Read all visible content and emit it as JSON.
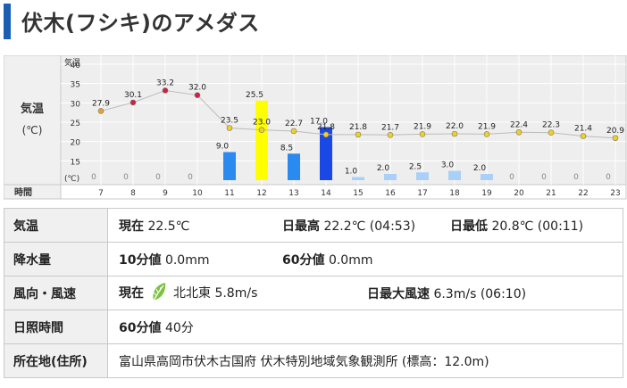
{
  "page": {
    "title": "伏木(フシキ)のアメダス"
  },
  "chart_data": {
    "type": "bar+line",
    "row_labels": {
      "temp": "気温",
      "temp_unit": "(℃)",
      "time": "時間"
    },
    "axis": {
      "corner_label": "気温",
      "unit_label": "(℃)",
      "yticks": [
        15,
        20,
        25,
        30,
        35,
        40
      ],
      "ylim": [
        10,
        40
      ]
    },
    "hours": [
      "7",
      "8",
      "9",
      "10",
      "11",
      "12",
      "13",
      "14",
      "15",
      "16",
      "17",
      "18",
      "19",
      "20",
      "21",
      "22",
      "23"
    ],
    "temperature": {
      "values": [
        27.9,
        30.1,
        33.2,
        32.0,
        23.5,
        23.0,
        22.7,
        21.8,
        21.8,
        21.7,
        21.9,
        22.0,
        21.9,
        22.4,
        22.3,
        21.4,
        20.9
      ],
      "labels": [
        "27.9",
        "30.1",
        "33.2",
        "32.0",
        "23.5",
        "23.0",
        "22.7",
        "21.8",
        "21.8",
        "21.7",
        "21.9",
        "22.0",
        "21.9",
        "22.4",
        "22.3",
        "21.4",
        "20.9"
      ]
    },
    "precipitation": {
      "values": [
        0,
        0,
        0,
        0,
        9.0,
        25.5,
        8.5,
        17.0,
        1.0,
        2.0,
        2.5,
        3.0,
        2.0,
        0,
        0,
        0,
        0
      ],
      "labels": [
        "0",
        "0",
        "0",
        "0",
        "9.0",
        "25.5",
        "8.5",
        "17.0",
        "1.0",
        "2.0",
        "2.5",
        "3.0",
        "2.0",
        "0",
        "0",
        "0",
        "0"
      ]
    },
    "colors": {
      "heavy": "#1a48e6",
      "very_heavy": "#ffff00",
      "moderate": "#2a8af0",
      "light": "#a8d0f8",
      "temp_line": "#bbbbbb",
      "dot_hot": "#cc2244",
      "dot_warm": "#e8a030",
      "dot_mild": "#f0d020"
    }
  },
  "details": {
    "temperature": {
      "label": "気温",
      "current_label": "現在",
      "current": "22.5℃",
      "max_label": "日最高",
      "max": "22.2℃ (04:53)",
      "min_label": "日最低",
      "min": "20.8℃ (00:11)"
    },
    "precipitation": {
      "label": "降水量",
      "ten_min_label": "10分値",
      "ten_min": "0.0mm",
      "sixty_min_label": "60分値",
      "sixty_min": "0.0mm"
    },
    "wind": {
      "label": "風向・風速",
      "current_label": "現在",
      "icon": "leaf-icon",
      "icon_color": "#7cc242",
      "current": "北北東 5.8m/s",
      "max_label": "日最大風速",
      "max": "6.3m/s (06:10)"
    },
    "sunshine": {
      "label": "日照時間",
      "sixty_min_label": "60分値",
      "value": "40分"
    },
    "location": {
      "label": "所在地(住所)",
      "value": "富山県高岡市伏木古国府 伏木特別地域気象観測所 (標高：12.0m)"
    }
  }
}
